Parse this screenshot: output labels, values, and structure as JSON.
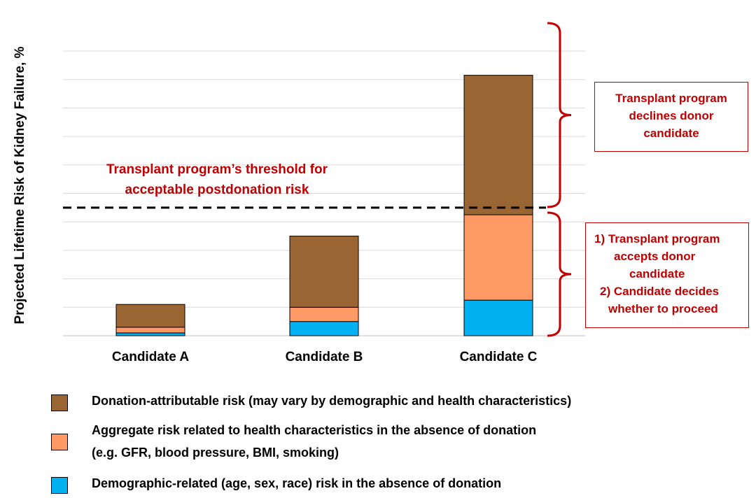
{
  "chart_data": {
    "type": "bar",
    "stacked": true,
    "ylabel": "Projected Lifetime Risk  of Kidney Failure, %",
    "categories": [
      "Candidate A",
      "Candidate B",
      "Candidate C"
    ],
    "series": [
      {
        "name": "Demographic-related (age, sex, race) risk in the absence of donation",
        "color": "#00b0f0",
        "values": [
          0.1,
          0.5,
          1.25
        ]
      },
      {
        "name": "Aggregate risk related to health characteristics in the absence of donation (e.g. GFR, blood pressure, BMI, smoking)",
        "color": "#ff9966",
        "values": [
          0.2,
          0.5,
          3.0
        ]
      },
      {
        "name": "Donation-attributable risk (may vary by demographic and health characteristics)",
        "color": "#996633",
        "values": [
          0.8,
          2.5,
          4.9
        ]
      }
    ],
    "ylim": [
      0,
      10
    ],
    "grid": true,
    "threshold": {
      "value": 4.5,
      "label": [
        "Transplant program’s threshold for",
        "acceptable postdonation risk"
      ]
    },
    "annotations": {
      "above": [
        "Transplant program",
        "declines donor",
        "candidate"
      ],
      "below": [
        "1) Transplant program",
        "accepts donor",
        "candidate",
        "2) Candidate decides",
        "whether to proceed"
      ]
    },
    "legend": {
      "placement": "bottom",
      "items": [
        {
          "lines": [
            "Donation-attributable risk (may vary by demographic and health characteristics)"
          ],
          "color": "#996633"
        },
        {
          "lines": [
            "Aggregate risk related to health characteristics in the absence of donation",
            "(e.g. GFR, blood pressure, BMI, smoking)"
          ],
          "color": "#ff9966"
        },
        {
          "lines": [
            "Demographic-related (age, sex, race) risk in the absence of donation"
          ],
          "color": "#00b0f0"
        }
      ]
    }
  }
}
